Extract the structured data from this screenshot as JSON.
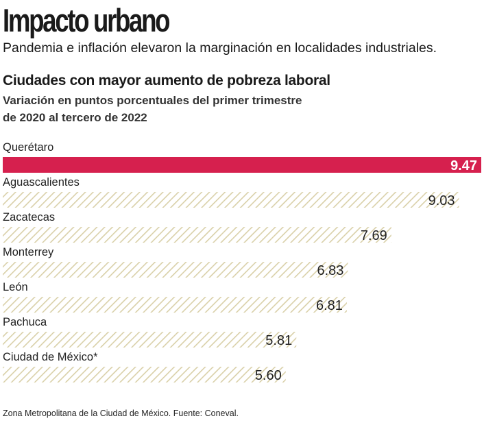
{
  "header": {
    "title": "Impacto urbano",
    "subtitle": "Pandemia e inflación elevaron la marginación  en localidades industriales."
  },
  "chart_data": {
    "type": "bar",
    "orientation": "horizontal",
    "title": "Ciudades con mayor aumento de pobreza laboral",
    "subtitle": "Variación en puntos porcentuales del primer trimestre de 2020 al tercero de 2022",
    "categories": [
      "Querétaro",
      "Aguascalientes",
      " Zacatecas",
      "Monterrey",
      "León",
      "Pachuca",
      "Ciudad de México*"
    ],
    "values": [
      9.47,
      9.03,
      7.69,
      6.83,
      6.81,
      5.81,
      5.6
    ],
    "value_labels": [
      "9.47",
      "9.03",
      "7.69",
      "6.83",
      "6.81",
      "5.81",
      "5.60"
    ],
    "highlight_index": 0,
    "colors": {
      "highlight": "#d6204e",
      "hatch": "#d9d0a8",
      "background": "#ffffff"
    },
    "grid": false,
    "legend": "none"
  },
  "footer": {
    "source": "Zona Metropolitana de la Ciudad de México. Fuente: Coneval."
  }
}
